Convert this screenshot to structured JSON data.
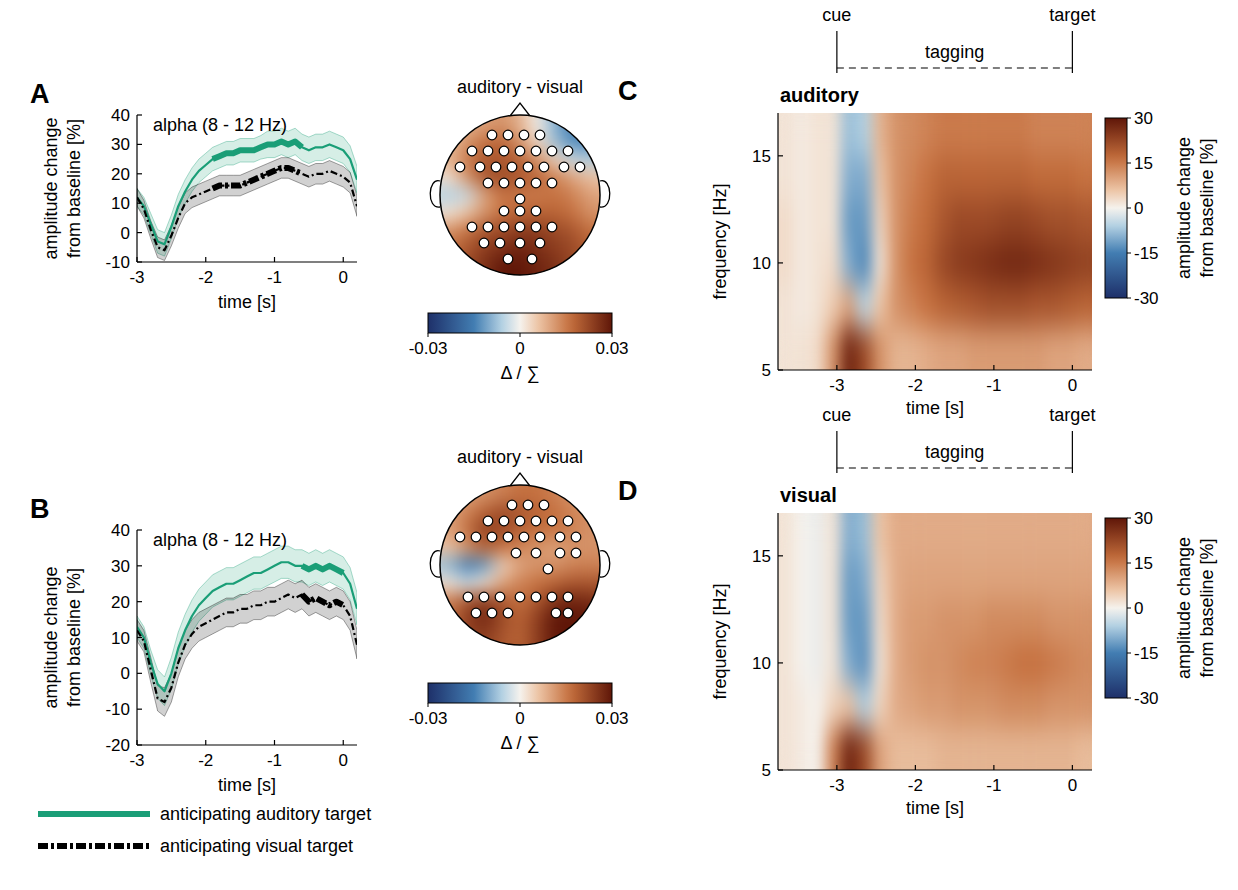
{
  "chart_data": [
    {
      "type": "line",
      "panel": "A",
      "title": "alpha (8 - 12 Hz)",
      "x_label": "time [s]",
      "y_label": "amplitude change from baseline [%]",
      "x": [
        -3,
        -2.9,
        -2.8,
        -2.7,
        -2.6,
        -2.5,
        -2.4,
        -2.3,
        -2.2,
        -2.1,
        -2,
        -1.9,
        -1.8,
        -1.7,
        -1.6,
        -1.5,
        -1.4,
        -1.3,
        -1.2,
        -1.1,
        -1,
        -0.9,
        -0.8,
        -0.7,
        -0.6,
        -0.5,
        -0.4,
        -0.3,
        -0.2,
        -0.1,
        0,
        0.1,
        0.2
      ],
      "xlim": [
        -3,
        0.2
      ],
      "xticks": [
        -3,
        -2,
        -1,
        0
      ],
      "ylim": [
        -10,
        40
      ],
      "yticks": [
        -10,
        0,
        10,
        20,
        30,
        40
      ],
      "significant": [
        -1.9,
        -0.6
      ],
      "series": [
        {
          "color": "#1a9e77",
          "line_style": "solid",
          "values": [
            12,
            9,
            3,
            -3,
            -4,
            2,
            9,
            14,
            18,
            21,
            23,
            25,
            26,
            27,
            27,
            28,
            28,
            28,
            29,
            30,
            30,
            31,
            30,
            31,
            29,
            28,
            29,
            29,
            30,
            29,
            28,
            25,
            18
          ],
          "error": [
            3,
            3,
            3.5,
            4,
            4,
            4,
            4,
            4,
            4,
            4,
            4,
            4,
            4,
            4,
            4,
            4,
            4,
            4,
            4,
            4.5,
            4.5,
            4.5,
            4.5,
            4.5,
            4.5,
            4.5,
            4.5,
            4.5,
            4.5,
            4.5,
            4.5,
            4.5,
            4.5
          ]
        },
        {
          "color": "#000000",
          "line_style": "dashdot",
          "values": [
            12,
            8,
            1,
            -5,
            -6,
            -1,
            5,
            10,
            12,
            13,
            14,
            15,
            16,
            16,
            16,
            16,
            17,
            18,
            19,
            20,
            21,
            22,
            22,
            21,
            20,
            19,
            20,
            20,
            21,
            20,
            19,
            17,
            9
          ],
          "error": [
            3,
            3,
            3,
            3.5,
            3.5,
            3.5,
            3.5,
            3.5,
            3.5,
            3.5,
            3.5,
            3.5,
            3.5,
            3.5,
            3.5,
            3.5,
            3.5,
            3.5,
            3.5,
            3.5,
            3.5,
            3.5,
            3.5,
            3.5,
            3.5,
            3.5,
            3.5,
            3.5,
            3.5,
            3.5,
            3.5,
            3.5,
            3.5
          ]
        }
      ]
    },
    {
      "type": "topomap",
      "title": "auditory - visual",
      "xlim": [
        -1,
        1
      ],
      "ylim": [
        -1,
        1
      ],
      "cells": [
        [
          0.005,
          0.008,
          0.01,
          0.012,
          0.008,
          0,
          -0.01,
          -0.015,
          -0.015
        ],
        [
          0.006,
          0.012,
          0.016,
          0.018,
          0.012,
          0.003,
          -0.008,
          -0.014,
          -0.014
        ],
        [
          0.008,
          0.015,
          0.02,
          0.02,
          0.018,
          0.012,
          0.004,
          -0.004,
          -0.006
        ],
        [
          0.002,
          0.012,
          0.02,
          0.022,
          0.02,
          0.018,
          0.014,
          0.01,
          0.006
        ],
        [
          -0.006,
          -0.004,
          0.01,
          0.016,
          0.015,
          0.015,
          0.016,
          0.014,
          0.01
        ],
        [
          0.002,
          0.006,
          0.012,
          0.016,
          0.018,
          0.018,
          0.018,
          0.016,
          0.012
        ],
        [
          0.012,
          0.016,
          0.02,
          0.022,
          0.024,
          0.024,
          0.022,
          0.02,
          0.016
        ],
        [
          0.016,
          0.02,
          0.024,
          0.026,
          0.028,
          0.026,
          0.024,
          0.022,
          0.018
        ],
        [
          0.018,
          0.022,
          0.026,
          0.03,
          0.03,
          0.028,
          0.026,
          0.022,
          0.02
        ]
      ],
      "electrodes": {
        "x": [
          -0.35,
          -0.15,
          0.05,
          0.25,
          -0.6,
          -0.4,
          -0.2,
          0,
          0.2,
          0.4,
          0.6,
          -0.75,
          -0.5,
          -0.3,
          -0.1,
          0.1,
          0.3,
          0.55,
          0.75,
          -0.4,
          -0.2,
          0,
          0.2,
          0.4,
          0,
          -0.2,
          0,
          0.2,
          -0.6,
          -0.4,
          -0.2,
          0,
          0.2,
          0.4,
          -0.45,
          -0.25,
          0,
          0.25,
          -0.15,
          0.15
        ],
        "y": [
          0.75,
          0.75,
          0.75,
          0.75,
          0.55,
          0.55,
          0.55,
          0.55,
          0.55,
          0.55,
          0.55,
          0.35,
          0.35,
          0.35,
          0.35,
          0.35,
          0.35,
          0.35,
          0.35,
          0.15,
          0.15,
          0.15,
          0.15,
          0.15,
          -0.05,
          -0.2,
          -0.2,
          -0.2,
          -0.4,
          -0.4,
          -0.4,
          -0.4,
          -0.4,
          -0.4,
          -0.6,
          -0.6,
          -0.6,
          -0.6,
          -0.8,
          -0.8
        ]
      },
      "colorbar": {
        "range": [
          -0.03,
          0.03
        ],
        "ticks": [
          -0.03,
          0,
          0.03
        ],
        "label": "Δ / ∑"
      }
    },
    {
      "type": "line",
      "panel": "B",
      "title": "alpha (8 - 12 Hz)",
      "x_label": "time [s]",
      "y_label": "amplitude change from baseline [%]",
      "x": [
        -3,
        -2.9,
        -2.8,
        -2.7,
        -2.6,
        -2.5,
        -2.4,
        -2.3,
        -2.2,
        -2.1,
        -2,
        -1.9,
        -1.8,
        -1.7,
        -1.6,
        -1.5,
        -1.4,
        -1.3,
        -1.2,
        -1.1,
        -1,
        -0.9,
        -0.8,
        -0.7,
        -0.6,
        -0.5,
        -0.4,
        -0.3,
        -0.2,
        -0.1,
        0,
        0.1,
        0.2
      ],
      "xlim": [
        -3,
        0.2
      ],
      "xticks": [
        -3,
        -2,
        -1,
        0
      ],
      "ylim": [
        -20,
        40
      ],
      "yticks": [
        -20,
        -10,
        0,
        10,
        20,
        30,
        40
      ],
      "significant": [
        -0.6,
        0
      ],
      "legend": "bottom",
      "series": [
        {
          "name": "anticipating auditory target",
          "color": "#1a9e77",
          "line_style": "solid",
          "values": [
            13,
            10,
            3,
            -3,
            -5,
            0,
            7,
            12,
            16,
            19,
            21,
            23,
            24,
            25,
            25,
            26,
            27,
            28,
            28,
            29,
            30,
            31,
            31,
            30,
            30,
            29,
            30,
            29,
            30,
            29,
            28,
            25,
            18
          ],
          "error": [
            3,
            3,
            3.5,
            4,
            4,
            4.5,
            4.5,
            4.5,
            4.5,
            4.5,
            4.5,
            4.5,
            4.5,
            4.5,
            4.5,
            4.5,
            4.5,
            4.5,
            4.5,
            4.5,
            4.5,
            4.5,
            4.5,
            4.5,
            4.5,
            4.5,
            4.5,
            4.5,
            4.5,
            4.5,
            4.5,
            4.5,
            4.5
          ]
        },
        {
          "name": "anticipating visual target",
          "color": "#000000",
          "line_style": "dashdot",
          "values": [
            12,
            9,
            1,
            -7,
            -8,
            -4,
            3,
            8,
            11,
            13,
            14,
            15,
            16,
            17,
            17,
            18,
            18,
            19,
            19,
            20,
            20,
            21,
            22,
            21,
            22,
            20,
            21,
            20,
            19,
            20,
            19,
            16,
            8
          ],
          "error": [
            3,
            3,
            3.5,
            3.5,
            4,
            4,
            4,
            4,
            4,
            4,
            4,
            4,
            4,
            4,
            4,
            4,
            4,
            4,
            4,
            4,
            4,
            4,
            4,
            4,
            4,
            4,
            4,
            4,
            4,
            4,
            4,
            4,
            4
          ]
        }
      ]
    },
    {
      "type": "topomap",
      "title": "auditory - visual",
      "xlim": [
        -1,
        1
      ],
      "ylim": [
        -1,
        1
      ],
      "cells": [
        [
          0.008,
          0.01,
          0.012,
          0.014,
          0.016,
          0.016,
          0.014,
          0.012,
          0.01
        ],
        [
          0.01,
          0.014,
          0.018,
          0.022,
          0.02,
          0.018,
          0.016,
          0.014,
          0.012
        ],
        [
          0.01,
          0.016,
          0.024,
          0.022,
          0.018,
          0.016,
          0.016,
          0.014,
          0.012
        ],
        [
          0.006,
          0.012,
          0.018,
          0.016,
          0.014,
          0.012,
          0.01,
          0.012,
          0.012
        ],
        [
          -0.008,
          -0.016,
          -0.012,
          0.004,
          0.01,
          0.012,
          0.012,
          0.014,
          0.014
        ],
        [
          0.002,
          -0.004,
          0.002,
          0.01,
          0.014,
          0.016,
          0.018,
          0.02,
          0.02
        ],
        [
          0.014,
          0.02,
          0.024,
          0.02,
          0.016,
          0.02,
          0.026,
          0.028,
          0.026
        ],
        [
          0.016,
          0.024,
          0.028,
          0.022,
          0.018,
          0.024,
          0.03,
          0.032,
          0.03
        ],
        [
          0.018,
          0.022,
          0.024,
          0.02,
          0.018,
          0.024,
          0.03,
          0.03,
          0.028
        ]
      ],
      "electrodes": {
        "x": [
          -0.1,
          0.1,
          0.3,
          -0.4,
          -0.2,
          0,
          0.2,
          0.4,
          0.6,
          -0.75,
          -0.55,
          -0.35,
          -0.15,
          0.05,
          0.25,
          0.5,
          0.7,
          -0.05,
          0.2,
          0.5,
          0.7,
          0.35,
          -0.65,
          -0.45,
          -0.25,
          0,
          0.2,
          0.4,
          0.6,
          -0.55,
          -0.35,
          -0.15,
          0.45,
          0.6
        ],
        "y": [
          0.75,
          0.75,
          0.75,
          0.55,
          0.55,
          0.55,
          0.55,
          0.55,
          0.55,
          0.35,
          0.35,
          0.35,
          0.35,
          0.35,
          0.35,
          0.35,
          0.35,
          0.15,
          0.15,
          0.15,
          0.15,
          -0.05,
          -0.4,
          -0.4,
          -0.4,
          -0.4,
          -0.4,
          -0.4,
          -0.4,
          -0.6,
          -0.6,
          -0.6,
          -0.6,
          -0.6
        ]
      },
      "colorbar": {
        "range": [
          -0.03,
          0.03
        ],
        "ticks": [
          -0.03,
          0,
          0.03
        ],
        "label": "Δ / ∑"
      }
    },
    {
      "type": "heatmap",
      "panel": "C",
      "title": "auditory",
      "x_label": "time [s]",
      "y_label": "frequency [Hz]",
      "x": [
        -3.65,
        -3.45,
        -3.25,
        -3.05,
        -2.85,
        -2.65,
        -2.45,
        -2.25,
        -2.05,
        -1.85,
        -1.65,
        -1.45,
        -1.25,
        -1.05,
        -0.85,
        -0.65,
        -0.45,
        -0.25,
        -0.05,
        0.15
      ],
      "y": [
        6,
        8,
        10,
        12,
        14,
        16
      ],
      "xlim": [
        -3.75,
        0.25
      ],
      "xticks": [
        -3,
        -2,
        -1,
        0
      ],
      "ylim": [
        5,
        17
      ],
      "yticks": [
        5,
        10,
        15
      ],
      "cells": [
        [
          2,
          2,
          3,
          12,
          28,
          22,
          12,
          8,
          8,
          9,
          10,
          10,
          11,
          11,
          11,
          11,
          11,
          10,
          10,
          9
        ],
        [
          2,
          1,
          2,
          5,
          10,
          -5,
          6,
          12,
          14,
          16,
          18,
          19,
          20,
          21,
          21,
          21,
          20,
          20,
          19,
          18
        ],
        [
          3,
          1,
          2,
          3,
          -10,
          -14,
          2,
          12,
          16,
          18,
          22,
          24,
          25,
          26,
          27,
          27,
          26,
          25,
          24,
          23
        ],
        [
          3,
          1,
          2,
          2,
          -12,
          -12,
          4,
          12,
          15,
          17,
          20,
          22,
          22,
          22,
          23,
          23,
          22,
          21,
          21,
          20
        ],
        [
          2,
          1,
          2,
          2,
          -10,
          -10,
          6,
          12,
          14,
          16,
          18,
          18,
          18,
          18,
          18,
          18,
          17,
          17,
          17,
          16
        ],
        [
          2,
          1,
          2,
          2,
          -8,
          -6,
          8,
          12,
          13,
          14,
          15,
          15,
          15,
          15,
          15,
          15,
          14,
          14,
          14,
          14
        ]
      ],
      "colorbar": {
        "range": [
          -30,
          30
        ],
        "ticks": [
          -30,
          -15,
          0,
          15,
          30
        ],
        "label": "amplitude change from baseline [%]"
      },
      "events": [
        {
          "label": "cue",
          "x": -3
        },
        {
          "label": "target",
          "x": 0
        }
      ],
      "annotation": "tagging"
    },
    {
      "type": "heatmap",
      "panel": "D",
      "title": "visual",
      "x_label": "time [s]",
      "y_label": "frequency [Hz]",
      "x": [
        -3.65,
        -3.45,
        -3.25,
        -3.05,
        -2.85,
        -2.65,
        -2.45,
        -2.25,
        -2.05,
        -1.85,
        -1.65,
        -1.45,
        -1.25,
        -1.05,
        -0.85,
        -0.65,
        -0.45,
        -0.25,
        -0.05,
        0.15
      ],
      "y": [
        6,
        8,
        10,
        12,
        14,
        16
      ],
      "xlim": [
        -3.75,
        0.25
      ],
      "xticks": [
        -3,
        -2,
        -1,
        0
      ],
      "ylim": [
        5,
        17
      ],
      "yticks": [
        5,
        10,
        15
      ],
      "cells": [
        [
          2,
          1,
          0,
          14,
          28,
          22,
          10,
          7,
          7,
          7,
          8,
          8,
          8,
          8,
          8,
          8,
          8,
          8,
          8,
          7
        ],
        [
          2,
          1,
          0,
          4,
          6,
          -6,
          4,
          9,
          10,
          11,
          11,
          12,
          12,
          12,
          13,
          13,
          13,
          12,
          12,
          12
        ],
        [
          2,
          0,
          -1,
          2,
          -10,
          -13,
          2,
          9,
          11,
          12,
          12,
          13,
          14,
          14,
          15,
          16,
          16,
          15,
          14,
          13
        ],
        [
          2,
          0,
          -1,
          2,
          -12,
          -12,
          3,
          9,
          11,
          11,
          12,
          12,
          12,
          13,
          13,
          13,
          13,
          12,
          12,
          12
        ],
        [
          2,
          0,
          -1,
          2,
          -12,
          -10,
          4,
          9,
          10,
          10,
          10,
          10,
          10,
          10,
          10,
          10,
          10,
          10,
          10,
          10
        ],
        [
          2,
          0,
          -1,
          2,
          -10,
          -8,
          6,
          9,
          9,
          9,
          9,
          9,
          9,
          9,
          9,
          9,
          9,
          9,
          9,
          9
        ]
      ],
      "colorbar": {
        "range": [
          -30,
          30
        ],
        "ticks": [
          -30,
          -15,
          0,
          15,
          30
        ],
        "label": "amplitude change from baseline [%]"
      },
      "events": [
        {
          "label": "cue",
          "x": -3
        },
        {
          "label": "target",
          "x": 0
        }
      ],
      "annotation": "tagging"
    }
  ]
}
